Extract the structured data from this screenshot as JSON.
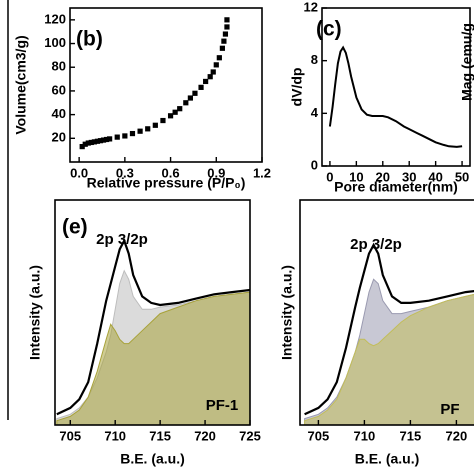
{
  "chart_data": [
    {
      "type": "scatter",
      "title": "(b)",
      "xlabel": "Relative pressure (P/P₀)",
      "ylabel": "Volume(cm3/g)",
      "color": "#000000",
      "x": [
        0.02,
        0.04,
        0.06,
        0.08,
        0.1,
        0.12,
        0.14,
        0.16,
        0.18,
        0.2,
        0.25,
        0.3,
        0.35,
        0.4,
        0.45,
        0.5,
        0.55,
        0.6,
        0.63,
        0.66,
        0.7,
        0.73,
        0.76,
        0.8,
        0.83,
        0.86,
        0.88,
        0.9,
        0.92,
        0.94,
        0.95,
        0.96,
        0.97,
        0.97
      ],
      "values": [
        13,
        15,
        16,
        16.5,
        17,
        17.5,
        18,
        18.5,
        19,
        19.5,
        21,
        22,
        24,
        26,
        28,
        31,
        35,
        39,
        42,
        45,
        50,
        54,
        58,
        63,
        68,
        72,
        76,
        82,
        88,
        96,
        102,
        108,
        114,
        120
      ],
      "xlim": [
        -0.06,
        1.2
      ],
      "ylim": [
        0,
        130
      ],
      "xticks": [
        {
          "value": 0,
          "label": "0.0"
        },
        0.3,
        0.6,
        0.9,
        1.2
      ],
      "yticks": [
        20,
        40,
        60,
        80,
        100,
        120
      ]
    },
    {
      "type": "line",
      "title": "(c)",
      "xlabel": "Pore diameter(nm)",
      "ylabel": "dV/dp",
      "color": "#000000",
      "x": [
        0,
        1,
        2,
        3,
        4,
        5,
        6,
        7,
        8,
        10,
        12,
        14,
        16,
        18,
        20,
        22,
        25,
        28,
        30,
        33,
        35,
        38,
        40,
        43,
        45,
        48,
        50
      ],
      "values": [
        3,
        4.5,
        6.2,
        7.8,
        8.7,
        9,
        8.6,
        7.8,
        6.8,
        5.2,
        4.3,
        3.9,
        3.8,
        3.8,
        3.8,
        3.7,
        3.4,
        3,
        2.8,
        2.5,
        2.3,
        2,
        1.8,
        1.6,
        1.5,
        1.45,
        1.5
      ],
      "xlim": [
        -3,
        53
      ],
      "ylim": [
        0,
        12
      ],
      "xticks": [
        0,
        10,
        20,
        30,
        40,
        50
      ],
      "yticks": [
        0,
        4,
        8,
        12
      ]
    },
    {
      "type": "xps",
      "title": "(e)",
      "annotations": [
        "2p 3/2p",
        "PF-1"
      ],
      "xlabel": "B.E. (a.u.)",
      "ylabel": "Intensity (a.u.)",
      "x": [
        703.5,
        705,
        706,
        707,
        708,
        709,
        709.5,
        710,
        710.5,
        711,
        711.5,
        712,
        713,
        714,
        715,
        717,
        719,
        721,
        723,
        725
      ],
      "series": [
        {
          "color": "#bdbdbd",
          "fill": true,
          "values": [
            3,
            5,
            8,
            13,
            22,
            34,
            42,
            54,
            66,
            72,
            68,
            60,
            54,
            54,
            55,
            56,
            58,
            60,
            61,
            62
          ]
        },
        {
          "color": "#a8a23a",
          "fill": true,
          "values": [
            2,
            4,
            7,
            13,
            25,
            40,
            47,
            44,
            40,
            38,
            38,
            40,
            44,
            48,
            52,
            55,
            58,
            60,
            61,
            62
          ]
        },
        {
          "color": "#000000",
          "fill": false,
          "values": [
            5,
            8,
            12,
            20,
            38,
            58,
            66,
            74,
            82,
            86,
            80,
            70,
            60,
            57,
            56,
            57,
            59,
            61,
            62,
            63
          ]
        }
      ],
      "xlim": [
        703.3,
        725
      ],
      "ylim": [
        0,
        105
      ],
      "xticks": [
        705,
        710,
        715,
        720,
        725
      ]
    },
    {
      "type": "xps",
      "annotations": [
        "2p 3/2p",
        "PF"
      ],
      "xlabel": "B.E. (a.u.)",
      "ylabel": "Intensity (a.u.)",
      "x": [
        703.5,
        705,
        706,
        707,
        708,
        709,
        709.5,
        710,
        710.5,
        711,
        711.5,
        712,
        713,
        714,
        715,
        717,
        719,
        721,
        723,
        725
      ],
      "series": [
        {
          "color": "#9a9ab0",
          "fill": true,
          "values": [
            3,
            5,
            8,
            13,
            22,
            34,
            42,
            52,
            62,
            68,
            66,
            58,
            52,
            52,
            53,
            55,
            58,
            60,
            62,
            63
          ]
        },
        {
          "color": "#c2bd5a",
          "fill": true,
          "values": [
            2,
            4,
            7,
            12,
            22,
            34,
            40,
            40,
            38,
            37,
            38,
            40,
            44,
            48,
            51,
            55,
            58,
            60,
            62,
            63
          ]
        },
        {
          "color": "#000000",
          "fill": false,
          "values": [
            5,
            8,
            12,
            20,
            36,
            55,
            64,
            72,
            80,
            84,
            80,
            70,
            60,
            57,
            57,
            58,
            60,
            62,
            63,
            64
          ]
        }
      ],
      "xlim": [
        703,
        728
      ],
      "ylim": [
        0,
        105
      ],
      "xticks": [
        705,
        710,
        715,
        720
      ]
    }
  ],
  "fragments": {
    "ylabel": "Mag (emu/g"
  }
}
